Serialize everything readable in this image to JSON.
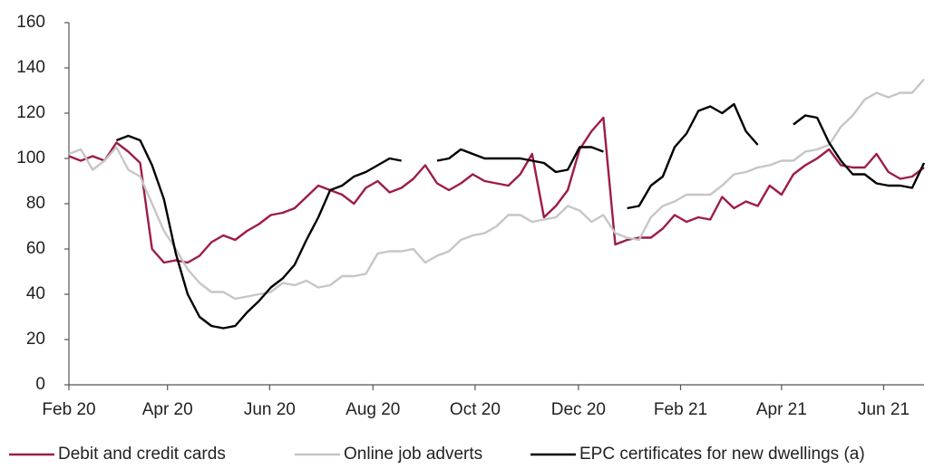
{
  "chart_data": {
    "type": "line",
    "x": [
      0,
      1,
      2,
      3,
      4,
      5,
      6,
      7,
      8,
      9,
      10,
      11,
      12,
      13,
      14,
      15,
      16,
      17,
      18,
      19,
      20,
      21,
      22,
      23,
      24,
      25,
      26,
      27,
      28,
      29,
      30,
      31,
      32,
      33,
      34,
      35,
      36,
      37,
      38,
      39,
      40,
      41,
      42,
      43,
      44,
      45,
      46,
      47,
      48,
      49,
      50,
      51,
      52,
      53,
      54,
      55,
      56,
      57,
      58,
      59,
      60,
      61,
      62,
      63,
      64,
      65,
      66,
      67,
      68,
      69,
      70,
      71,
      72
    ],
    "xlim": [
      0,
      72
    ],
    "xticks": [
      {
        "value": 0,
        "label": "Feb 20"
      },
      {
        "value": 8.3,
        "label": "Apr 20"
      },
      {
        "value": 16.9,
        "label": "Jun 20"
      },
      {
        "value": 25.6,
        "label": "Aug 20"
      },
      {
        "value": 34.2,
        "label": "Oct 20"
      },
      {
        "value": 42.9,
        "label": "Dec 20"
      },
      {
        "value": 51.5,
        "label": "Feb 21"
      },
      {
        "value": 60.0,
        "label": "Apr 21"
      },
      {
        "value": 68.6,
        "label": "Jun 21"
      }
    ],
    "ylim": [
      0,
      160
    ],
    "yticks": [
      0,
      20,
      40,
      60,
      80,
      100,
      120,
      140,
      160
    ],
    "legend": "bottom",
    "series": [
      {
        "name": "Debit and credit cards",
        "color": "#9e1b4b",
        "values": [
          101,
          99,
          101,
          99,
          107,
          103,
          98,
          60,
          54,
          55,
          54,
          57,
          63,
          66,
          64,
          68,
          71,
          75,
          76,
          78,
          83,
          88,
          86,
          84,
          80,
          87,
          90,
          85,
          87,
          91,
          97,
          89,
          86,
          89,
          93,
          90,
          89,
          88,
          93,
          102,
          74,
          79,
          86,
          104,
          112,
          118,
          62,
          64,
          65,
          65,
          69,
          75,
          72,
          74,
          73,
          83,
          78,
          81,
          79,
          88,
          84,
          93,
          97,
          100,
          104,
          97,
          96,
          96,
          102,
          94,
          91,
          92,
          96
        ]
      },
      {
        "name": "Online job adverts",
        "color": "#c6c6c6",
        "values": [
          102,
          104,
          95,
          99,
          105,
          95,
          92,
          80,
          68,
          60,
          51,
          45,
          41,
          41,
          38,
          39,
          40,
          41,
          45,
          44,
          46,
          43,
          44,
          48,
          48,
          49,
          58,
          59,
          59,
          60,
          54,
          57,
          59,
          64,
          66,
          67,
          70,
          75,
          75,
          72,
          73,
          74,
          79,
          77,
          72,
          75,
          67,
          65,
          64,
          74,
          79,
          81,
          84,
          84,
          84,
          88,
          93,
          94,
          96,
          97,
          99,
          99,
          103,
          104,
          106,
          114,
          119,
          126,
          129,
          127,
          129,
          129,
          135
        ]
      },
      {
        "name": "EPC certificates for new dwellings (a)",
        "color": "#000000",
        "values": [
          null,
          null,
          null,
          null,
          108,
          110,
          108,
          97,
          82,
          58,
          40,
          30,
          26,
          25,
          26,
          32,
          37,
          43,
          47,
          53,
          64,
          74,
          86,
          88,
          92,
          94,
          97,
          100,
          99,
          null,
          null,
          99,
          100,
          104,
          102,
          100,
          100,
          100,
          100,
          99,
          98,
          94,
          95,
          105,
          105,
          103,
          null,
          78,
          79,
          88,
          92,
          105,
          111,
          121,
          123,
          120,
          124,
          112,
          106,
          null,
          null,
          115,
          119,
          118,
          107,
          99,
          93,
          93,
          89,
          88,
          88,
          87,
          98
        ]
      }
    ]
  }
}
